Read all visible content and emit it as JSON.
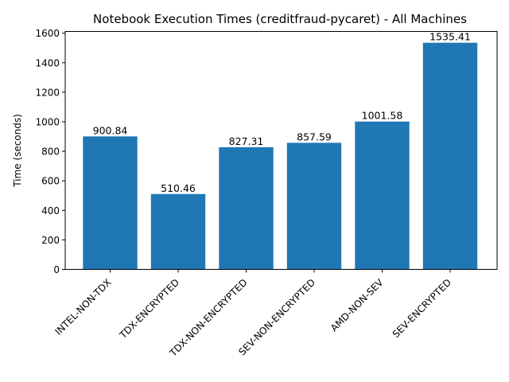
{
  "chart_data": {
    "type": "bar",
    "title": "Notebook Execution Times (creditfraud-pycaret) - All Machines",
    "xlabel": "",
    "ylabel": "Time (seconds)",
    "categories": [
      "INTEL-NON-TDX",
      "TDX-ENCRYPTED",
      "TDX-NON-ENCRYPTED",
      "SEV-NON-ENCRYPTED",
      "AMD-NON-SEV",
      "SEV-ENCRYPTED"
    ],
    "values": [
      900.84,
      510.46,
      827.31,
      857.59,
      1001.58,
      1535.41
    ],
    "data_labels": [
      "900.84",
      "510.46",
      "827.31",
      "857.59",
      "1001.58",
      "1535.41"
    ],
    "ylim": [
      0,
      1612
    ],
    "yticks": [
      0,
      200,
      400,
      600,
      800,
      1000,
      1200,
      1400,
      1600
    ],
    "ytick_labels": [
      "0",
      "200",
      "400",
      "600",
      "800",
      "1000",
      "1200",
      "1400",
      "1600"
    ],
    "bar_color": "#1f77b4",
    "grid": false,
    "legend": false
  }
}
